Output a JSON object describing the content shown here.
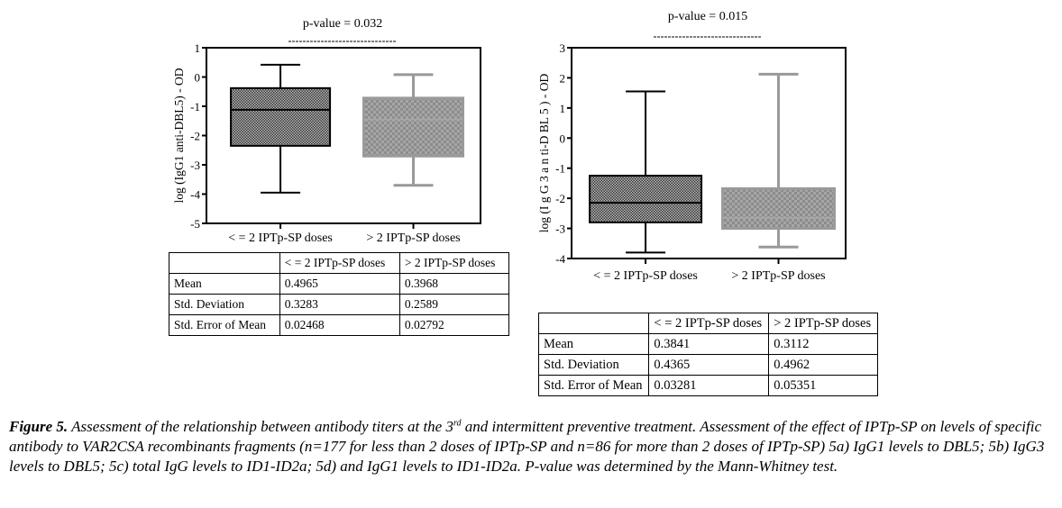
{
  "chart_data": [
    {
      "type": "box",
      "title": "p-value = 0.032",
      "ylabel": "log (IgG1 anti-DBL5) - OD",
      "ylim": [
        -5,
        1
      ],
      "yticks": [
        "1",
        "0",
        "-1",
        "-2",
        "-3",
        "-4",
        "-5"
      ],
      "ytick_values": [
        1,
        0,
        -1,
        -2,
        -3,
        -4,
        -5
      ],
      "categories": [
        "< = 2 IPTp-SP doses",
        "> 2 IPTp-SP doses"
      ],
      "boxes": [
        {
          "name": "< = 2 IPTp-SP doses",
          "min": -3.95,
          "q1": -2.35,
          "median": -1.12,
          "q3": -0.38,
          "max": 0.42,
          "color": "#000000"
        },
        {
          "name": "> 2 IPTp-SP doses",
          "min": -3.7,
          "q1": -2.7,
          "median": -1.45,
          "q3": -0.72,
          "max": 0.08,
          "color": "#999999"
        }
      ]
    },
    {
      "type": "box",
      "title": "p-value = 0.015",
      "ylabel": "log (I g G 3  a n ti-D BL 5 ) - OD",
      "ylim": [
        -4,
        3
      ],
      "yticks": [
        "3",
        "2",
        "1",
        "0",
        "-1",
        "-2",
        "-3",
        "-4"
      ],
      "ytick_values": [
        3,
        2,
        1,
        0,
        -1,
        -2,
        -3,
        -4
      ],
      "categories": [
        "< = 2 IPTp-SP doses",
        "> 2 IPTp-SP doses"
      ],
      "boxes": [
        {
          "name": "< = 2 IPTp-SP doses",
          "min": -3.8,
          "q1": -2.8,
          "median": -2.15,
          "q3": -1.25,
          "max": 1.55,
          "color": "#000000"
        },
        {
          "name": "> 2 IPTp-SP doses",
          "min": -3.62,
          "q1": -3.0,
          "median": -2.65,
          "q3": -1.68,
          "max": 2.12,
          "color": "#999999"
        }
      ]
    }
  ],
  "tables": [
    {
      "header": [
        "",
        "< = 2 IPTp-SP doses",
        "> 2 IPTp-SP doses"
      ],
      "rows": [
        [
          "Mean",
          "0.4965",
          "0.3968"
        ],
        [
          "Std. Deviation",
          "0.3283",
          "0.2589"
        ],
        [
          "Std. Error of Mean",
          "0.02468",
          "0.02792"
        ]
      ]
    },
    {
      "header": [
        "",
        "< = 2 IPTp-SP doses",
        "> 2 IPTp-SP doses"
      ],
      "rows": [
        [
          "Mean",
          "0.3841",
          "0.3112"
        ],
        [
          "Std. Deviation",
          "0.4365",
          "0.4962"
        ],
        [
          "Std. Error of Mean",
          "0.03281",
          "0.05351"
        ]
      ]
    }
  ],
  "caption": {
    "label": "Figure 5.",
    "text_before_sup": " Assessment of the relationship between antibody titers at the 3",
    "sup": "rd",
    "text_after_sup": " and intermittent preventive treatment. Assessment of the effect of IPTp-SP on levels of specific antibody to VAR2CSA recombinants fragments (n=177 for less than 2 doses of IPTp-SP and n=86 for more than 2 doses of IPTp-SP) 5a) IgG1 levels to DBL5; 5b) IgG3 levels to DBL5; 5c) total IgG levels to ID1-ID2a; 5d) and IgG1 levels to ID1-ID2a. P-value was determined by the Mann-Whitney test."
  }
}
